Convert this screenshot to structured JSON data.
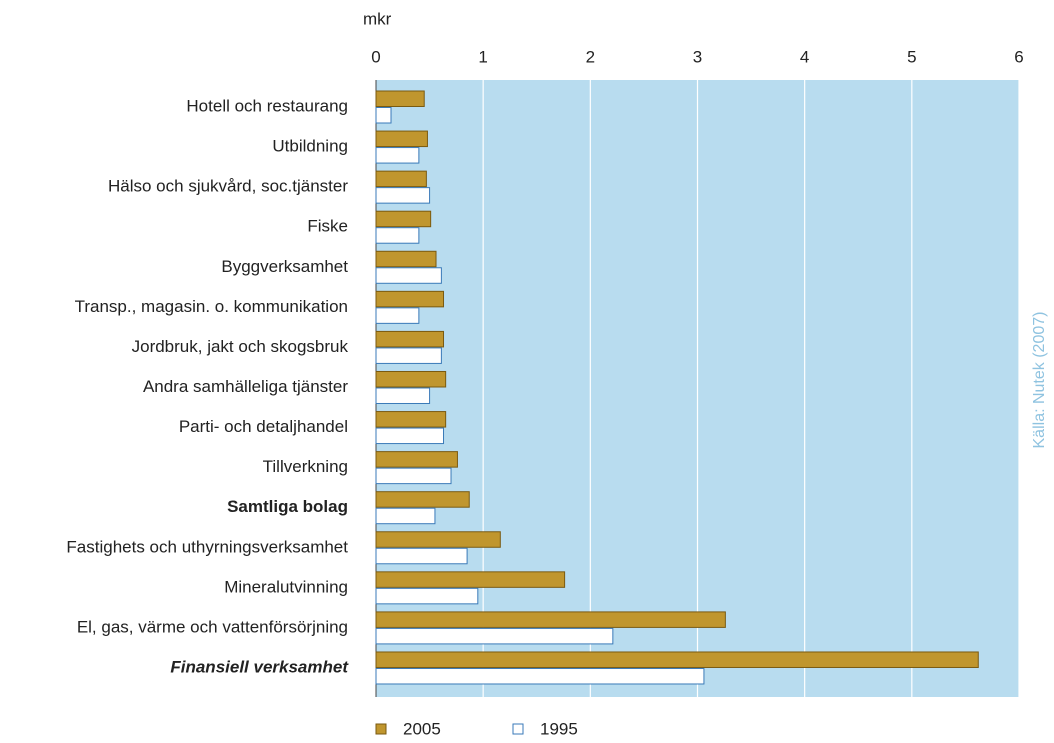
{
  "chart_data": {
    "type": "hbar",
    "axis_label": "mkr",
    "source": "Källa: Nutek (2007)",
    "categories": [
      "Hotell och restaurang",
      "Utbildning",
      "Hälso och sjukvård, soc.tjänster",
      "Fiske",
      "Byggverksamhet",
      "Transp., magasin. o. kommunikation",
      "Jordbruk, jakt och skogsbruk",
      "Andra samhälleliga tjänster",
      "Parti- och detaljhandel",
      "Tillverkning",
      "Samtliga bolag",
      "Fastighets och uthyrningsverksamhet",
      "Mineralutvinning",
      "El, gas, värme och vattenförsörjning",
      "Finansiell verksamhet"
    ],
    "category_styles": [
      "normal",
      "normal",
      "normal",
      "normal",
      "normal",
      "normal",
      "normal",
      "normal",
      "normal",
      "normal",
      "bold",
      "normal",
      "normal",
      "normal",
      "bold-italic"
    ],
    "series": [
      {
        "name": "2005",
        "color": "#c0962e",
        "values": [
          0.45,
          0.48,
          0.47,
          0.51,
          0.56,
          0.63,
          0.63,
          0.65,
          0.65,
          0.76,
          0.87,
          1.16,
          1.76,
          3.26,
          5.62
        ]
      },
      {
        "name": "1995",
        "color": "#ffffff",
        "values": [
          0.14,
          0.4,
          0.5,
          0.4,
          0.61,
          0.4,
          0.61,
          0.5,
          0.63,
          0.7,
          0.55,
          0.85,
          0.95,
          2.21,
          3.06
        ]
      }
    ],
    "xlim": [
      0,
      6
    ],
    "xticks": [
      0,
      1,
      2,
      3,
      4,
      5,
      6
    ],
    "grid": true,
    "legend": "bottom"
  }
}
